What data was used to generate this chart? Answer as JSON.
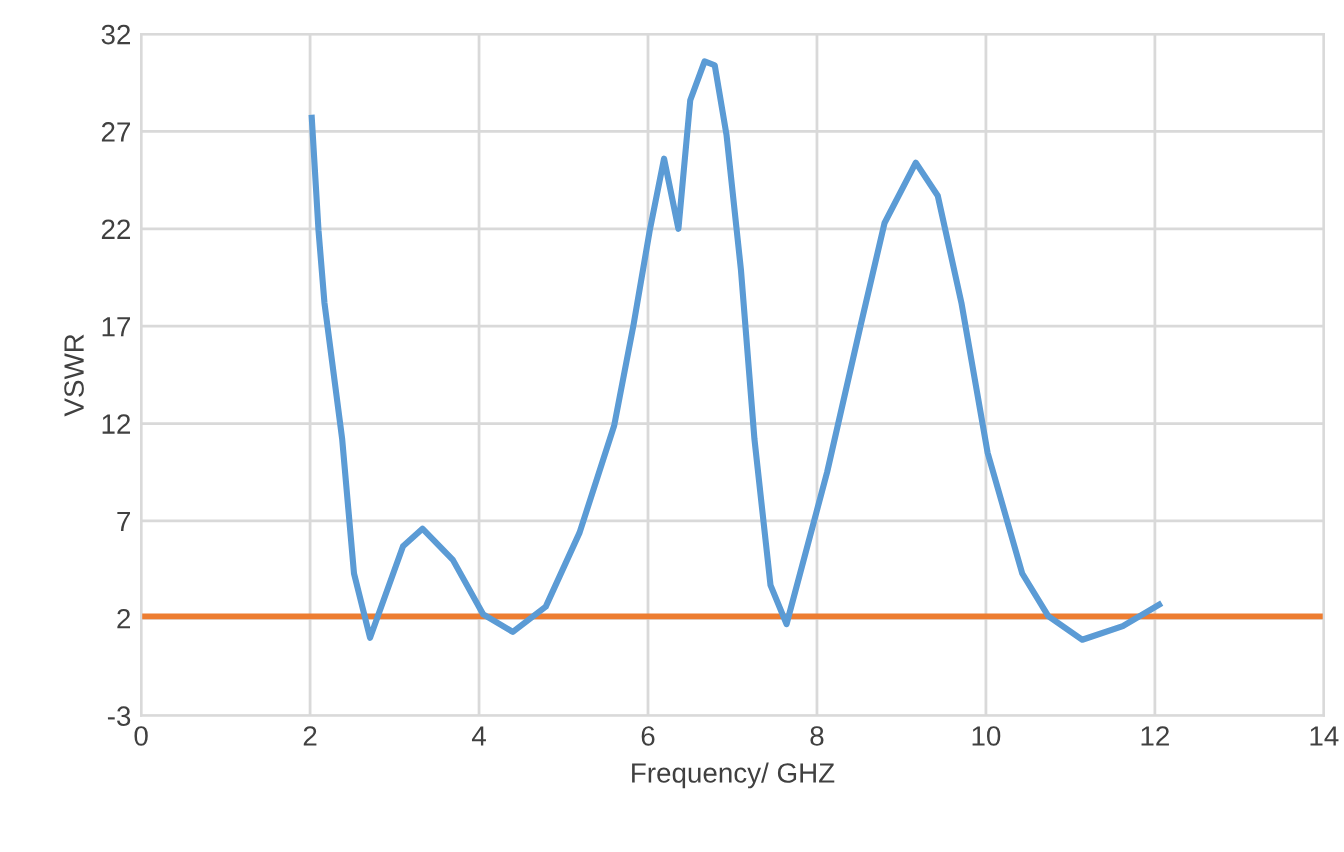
{
  "chart_data": {
    "type": "line",
    "xlabel": "Frequency/ GHZ",
    "ylabel": "VSWR",
    "xlim": [
      0,
      14
    ],
    "xticks": [
      0,
      2,
      4,
      6,
      8,
      10,
      12,
      14
    ],
    "ylim": [
      -3,
      32
    ],
    "yticks": [
      -3,
      2,
      7,
      12,
      17,
      22,
      27,
      32
    ],
    "grid": true,
    "marker": "none",
    "line_style": "solid",
    "series": [
      {
        "color": "#5b9bd5",
        "x": [
          2.02,
          2.1,
          2.17,
          2.38,
          2.52,
          2.71,
          3.1,
          3.33,
          3.69,
          4.05,
          4.4,
          4.79,
          5.19,
          5.6,
          5.83,
          6.02,
          6.19,
          6.36,
          6.5,
          6.67,
          6.79,
          6.93,
          7.1,
          7.26,
          7.45,
          7.64,
          8.12,
          8.52,
          8.8,
          9.17,
          9.43,
          9.71,
          10.02,
          10.43,
          10.74,
          11.14,
          11.62,
          12.05
        ],
        "values": [
          27.7,
          21.9,
          18.2,
          11.2,
          4.3,
          1.0,
          5.7,
          6.6,
          5.0,
          2.2,
          1.3,
          2.6,
          6.4,
          11.9,
          17.1,
          21.9,
          25.6,
          22.0,
          28.6,
          30.6,
          30.4,
          26.8,
          19.9,
          11.2,
          3.7,
          1.7,
          9.5,
          17.1,
          22.3,
          25.4,
          23.7,
          18.2,
          10.5,
          4.3,
          2.1,
          0.9,
          1.6,
          2.7
        ]
      }
    ],
    "ref_lines": [
      {
        "axis": "y",
        "value": 2.1,
        "color": "#ed7d31",
        "line_style": "solid"
      }
    ]
  }
}
